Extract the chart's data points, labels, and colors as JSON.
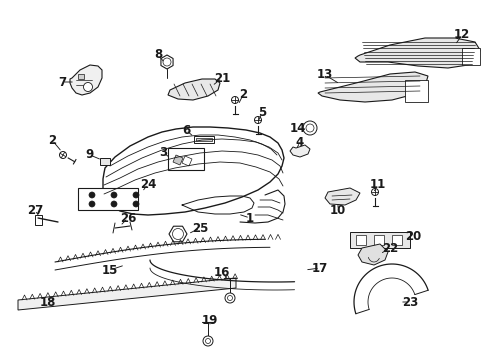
{
  "background_color": "#ffffff",
  "line_color": "#1a1a1a",
  "figsize": [
    4.89,
    3.6
  ],
  "dpi": 100,
  "label_fontsize": 8.5,
  "label_fontsize_small": 7.5
}
